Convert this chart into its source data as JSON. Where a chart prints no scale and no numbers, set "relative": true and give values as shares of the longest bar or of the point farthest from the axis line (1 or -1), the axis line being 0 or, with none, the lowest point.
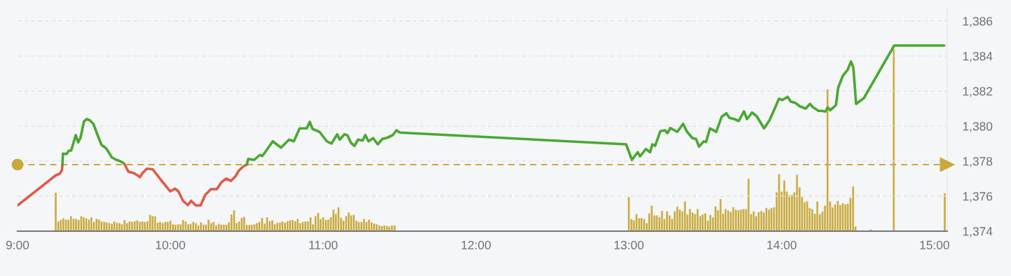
{
  "chart_data": [
    {
      "type": "line",
      "xlim": [
        9.0,
        15.083
      ],
      "xticks": [
        {
          "value": 9,
          "label": "9:00"
        },
        {
          "value": 10,
          "label": "10:00"
        },
        {
          "value": 11,
          "label": "11:00"
        },
        {
          "value": 12,
          "label": "12:00"
        },
        {
          "value": 13,
          "label": "13:00"
        },
        {
          "value": 14,
          "label": "14:00"
        },
        {
          "value": 15,
          "label": "15:00"
        }
      ],
      "ylim": [
        1374,
        1386.8
      ],
      "yticks": [
        {
          "value": 1374,
          "label": "1,374"
        },
        {
          "value": 1376,
          "label": "1,376"
        },
        {
          "value": 1378,
          "label": "1,378"
        },
        {
          "value": 1380,
          "label": "1,380"
        },
        {
          "value": 1382,
          "label": "1,382"
        },
        {
          "value": 1384,
          "label": "1,384"
        },
        {
          "value": 1386,
          "label": "1,386"
        }
      ],
      "grid": "y",
      "marker": "none",
      "line_style": "solid",
      "ref_lines": [
        {
          "axis": "y",
          "value": 1377.8,
          "color": "#c8a93a",
          "line_style": "dashed"
        }
      ],
      "series": [
        {
          "color": "#e05a47",
          "x": [
            9.0,
            9.252,
            9.275,
            9.29,
            9.294
          ],
          "values": [
            1375.47,
            1377.2,
            1377.27,
            1377.47,
            1377.8
          ]
        },
        {
          "color": "#4aa832",
          "x": [
            9.294,
            9.297,
            9.32,
            9.336,
            9.351,
            9.381,
            9.397,
            9.412,
            9.435,
            9.453,
            9.473,
            9.496,
            9.519,
            9.549,
            9.58,
            9.618,
            9.648,
            9.671,
            9.694,
            9.702
          ],
          "values": [
            1377.8,
            1378.43,
            1378.4,
            1378.6,
            1378.6,
            1379.49,
            1379.07,
            1379.33,
            1380.27,
            1380.4,
            1380.33,
            1380.13,
            1379.6,
            1378.93,
            1378.73,
            1378.2,
            1378.07,
            1378.0,
            1377.89,
            1377.8
          ]
        },
        {
          "color": "#e05a47",
          "x": [
            9.702,
            9.725,
            9.763,
            9.801,
            9.819,
            9.847,
            9.885,
            9.938,
            9.969,
            9.999,
            10.03,
            10.053,
            10.083,
            10.114,
            10.136,
            10.167,
            10.198,
            10.228,
            10.266,
            10.304,
            10.335,
            10.365,
            10.396,
            10.426,
            10.449,
            10.48,
            10.5
          ],
          "values": [
            1377.8,
            1377.4,
            1377.31,
            1377.09,
            1377.33,
            1377.57,
            1377.53,
            1376.93,
            1376.6,
            1376.27,
            1376.43,
            1376.27,
            1375.73,
            1375.49,
            1375.73,
            1375.47,
            1375.47,
            1376.07,
            1376.4,
            1376.4,
            1376.8,
            1377.0,
            1376.87,
            1377.13,
            1377.47,
            1377.71,
            1377.8
          ]
        },
        {
          "color": "#4aa832",
          "x": [
            10.5,
            10.51,
            10.548,
            10.587,
            10.602,
            10.625,
            10.67,
            10.724,
            10.754,
            10.777,
            10.808,
            10.846,
            10.892,
            10.912,
            10.93,
            10.976,
            11.024,
            11.054,
            11.092,
            11.108,
            11.139,
            11.159,
            11.182,
            11.205,
            11.228,
            11.258,
            11.276,
            11.296,
            11.327,
            11.357,
            11.388,
            11.418,
            11.456,
            11.479,
            11.502,
            12.982,
            13.02,
            13.058,
            13.073,
            13.111,
            13.139,
            13.154,
            13.172,
            13.206,
            13.237,
            13.252,
            13.272,
            13.317,
            13.355,
            13.378,
            13.416,
            13.439,
            13.459,
            13.49,
            13.505,
            13.531,
            13.572,
            13.607,
            13.638,
            13.658,
            13.691,
            13.719,
            13.753,
            13.773,
            13.806,
            13.837,
            13.885,
            13.92,
            13.951,
            13.982,
            14.005,
            14.039,
            14.059,
            14.088,
            14.119,
            14.157,
            14.185,
            14.203,
            14.241,
            14.263,
            14.286,
            14.301,
            14.317,
            14.339,
            14.355,
            14.37,
            14.4,
            14.431,
            14.454,
            14.469,
            14.487,
            14.538,
            14.736,
            15.064
          ],
          "values": [
            1377.8,
            1378.13,
            1378.07,
            1378.36,
            1378.29,
            1378.57,
            1379.13,
            1378.77,
            1379.03,
            1379.23,
            1379.13,
            1379.87,
            1379.87,
            1380.24,
            1379.84,
            1379.67,
            1379.13,
            1379.0,
            1379.53,
            1379.23,
            1379.53,
            1379.47,
            1379.04,
            1378.87,
            1379.23,
            1379.17,
            1379.49,
            1379.13,
            1379.31,
            1378.96,
            1379.27,
            1379.33,
            1379.49,
            1379.76,
            1379.63,
            1378.96,
            1378.07,
            1378.51,
            1378.27,
            1378.69,
            1378.51,
            1378.96,
            1378.87,
            1379.71,
            1379.76,
            1379.6,
            1379.89,
            1379.67,
            1380.13,
            1379.71,
            1379.31,
            1379.27,
            1378.83,
            1379.13,
            1379.09,
            1379.87,
            1379.67,
            1380.53,
            1380.73,
            1380.47,
            1380.4,
            1380.29,
            1380.84,
            1380.4,
            1380.77,
            1380.56,
            1379.87,
            1380.33,
            1380.93,
            1381.56,
            1381.49,
            1381.67,
            1381.4,
            1381.33,
            1381.13,
            1381.0,
            1381.27,
            1381.09,
            1380.87,
            1380.87,
            1380.83,
            1381.07,
            1380.91,
            1381.07,
            1381.2,
            1382.2,
            1382.87,
            1383.2,
            1383.69,
            1383.33,
            1381.27,
            1381.6,
            1384.6,
            1384.6
          ]
        }
      ]
    },
    {
      "type": "bar",
      "relative": true,
      "xlim": [
        9.0,
        15.083
      ],
      "tick_labels": false,
      "color": "#c8a93a",
      "x": [
        9.25,
        9.267,
        9.283,
        9.3,
        9.317,
        9.333,
        9.35,
        9.367,
        9.383,
        9.4,
        9.417,
        9.433,
        9.45,
        9.467,
        9.483,
        9.5,
        9.517,
        9.533,
        9.55,
        9.567,
        9.583,
        9.6,
        9.617,
        9.633,
        9.65,
        9.667,
        9.683,
        9.7,
        9.717,
        9.733,
        9.75,
        9.767,
        9.783,
        9.8,
        9.817,
        9.833,
        9.85,
        9.867,
        9.883,
        9.9,
        9.917,
        9.933,
        9.95,
        9.967,
        9.983,
        10.0,
        10.017,
        10.033,
        10.05,
        10.067,
        10.083,
        10.1,
        10.117,
        10.133,
        10.15,
        10.167,
        10.183,
        10.2,
        10.217,
        10.233,
        10.25,
        10.267,
        10.283,
        10.3,
        10.317,
        10.333,
        10.35,
        10.367,
        10.383,
        10.4,
        10.417,
        10.433,
        10.45,
        10.467,
        10.483,
        10.5,
        10.517,
        10.533,
        10.55,
        10.567,
        10.583,
        10.6,
        10.617,
        10.633,
        10.65,
        10.667,
        10.683,
        10.7,
        10.717,
        10.733,
        10.75,
        10.767,
        10.783,
        10.8,
        10.817,
        10.833,
        10.85,
        10.867,
        10.883,
        10.9,
        10.917,
        10.933,
        10.95,
        10.967,
        10.983,
        11.0,
        11.017,
        11.033,
        11.05,
        11.067,
        11.083,
        11.1,
        11.117,
        11.133,
        11.15,
        11.167,
        11.183,
        11.2,
        11.217,
        11.233,
        11.25,
        11.267,
        11.283,
        11.3,
        11.317,
        11.333,
        11.35,
        11.367,
        11.383,
        11.4,
        11.417,
        11.433,
        11.45,
        11.467,
        11.483,
        13.0,
        13.017,
        13.033,
        13.05,
        13.067,
        13.083,
        13.1,
        13.117,
        13.133,
        13.15,
        13.167,
        13.183,
        13.2,
        13.217,
        13.233,
        13.25,
        13.267,
        13.283,
        13.3,
        13.317,
        13.333,
        13.35,
        13.367,
        13.383,
        13.4,
        13.417,
        13.433,
        13.45,
        13.467,
        13.483,
        13.5,
        13.517,
        13.533,
        13.55,
        13.567,
        13.583,
        13.6,
        13.617,
        13.633,
        13.65,
        13.667,
        13.683,
        13.7,
        13.717,
        13.733,
        13.75,
        13.767,
        13.783,
        13.8,
        13.817,
        13.833,
        13.85,
        13.867,
        13.883,
        13.9,
        13.917,
        13.933,
        13.95,
        13.967,
        13.983,
        14.0,
        14.017,
        14.033,
        14.05,
        14.067,
        14.083,
        14.1,
        14.117,
        14.133,
        14.15,
        14.167,
        14.183,
        14.2,
        14.217,
        14.233,
        14.25,
        14.267,
        14.283,
        14.3,
        14.317,
        14.333,
        14.35,
        14.367,
        14.383,
        14.4,
        14.417,
        14.433,
        14.45,
        14.467,
        14.483,
        14.583,
        14.733,
        15.067
      ],
      "values": [
        0.212,
        0.054,
        0.062,
        0.071,
        0.064,
        0.064,
        0.083,
        0.068,
        0.068,
        0.062,
        0.083,
        0.077,
        0.071,
        0.064,
        0.077,
        0.051,
        0.068,
        0.064,
        0.054,
        0.051,
        0.049,
        0.045,
        0.041,
        0.054,
        0.047,
        0.045,
        0.038,
        0.062,
        0.045,
        0.054,
        0.051,
        0.055,
        0.06,
        0.051,
        0.054,
        0.051,
        0.055,
        0.09,
        0.083,
        0.083,
        0.047,
        0.051,
        0.045,
        0.051,
        0.051,
        0.058,
        0.038,
        0.036,
        0.038,
        0.038,
        0.062,
        0.054,
        0.038,
        0.041,
        0.051,
        0.045,
        0.032,
        0.049,
        0.036,
        0.036,
        0.064,
        0.045,
        0.051,
        0.032,
        0.041,
        0.036,
        0.036,
        0.036,
        0.049,
        0.092,
        0.115,
        0.045,
        0.054,
        0.073,
        0.079,
        0.035,
        0.035,
        0.035,
        0.038,
        0.045,
        0.051,
        0.073,
        0.042,
        0.077,
        0.055,
        0.06,
        0.038,
        0.047,
        0.047,
        0.054,
        0.047,
        0.055,
        0.06,
        0.062,
        0.055,
        0.068,
        0.045,
        0.051,
        0.054,
        0.054,
        0.077,
        0.038,
        0.083,
        0.1,
        0.067,
        0.077,
        0.062,
        0.064,
        0.077,
        0.119,
        0.096,
        0.131,
        0.074,
        0.058,
        0.083,
        0.103,
        0.087,
        0.09,
        0.058,
        0.051,
        0.051,
        0.068,
        0.051,
        0.064,
        0.049,
        0.042,
        0.038,
        0.032,
        0.028,
        0.032,
        0.029,
        0.026,
        0.032,
        0.032,
        null,
        0.188,
        0.067,
        0.06,
        0.094,
        0.071,
        0.073,
        0.067,
        0.045,
        0.099,
        0.141,
        0.087,
        0.087,
        0.077,
        0.112,
        0.068,
        0.109,
        0.087,
        0.068,
        0.109,
        0.135,
        0.119,
        0.109,
        0.164,
        0.092,
        0.122,
        0.103,
        0.094,
        0.122,
        0.083,
        0.092,
        0.099,
        0.058,
        0.09,
        0.077,
        0.137,
        0.115,
        0.176,
        0.096,
        0.122,
        0.115,
        0.106,
        0.132,
        0.119,
        0.115,
        0.119,
        0.122,
        0.121,
        0.288,
        0.094,
        0.109,
        0.083,
        0.105,
        0.112,
        0.103,
        0.128,
        0.119,
        0.128,
        0.131,
        0.214,
        0.314,
        0.218,
        0.279,
        0.218,
        0.199,
        0.199,
        0.214,
        0.31,
        0.241,
        0.188,
        0.16,
        0.164,
        0.128,
        0.122,
        0.096,
        0.164,
        0.094,
        0.109,
        0.141,
        0.779,
        0.164,
        0.131,
        0.147,
        0.167,
        0.144,
        0.154,
        0.147,
        0.151,
        0.183,
        0.246,
        0.026,
        0.01,
        1.0,
        0.208
      ]
    }
  ]
}
